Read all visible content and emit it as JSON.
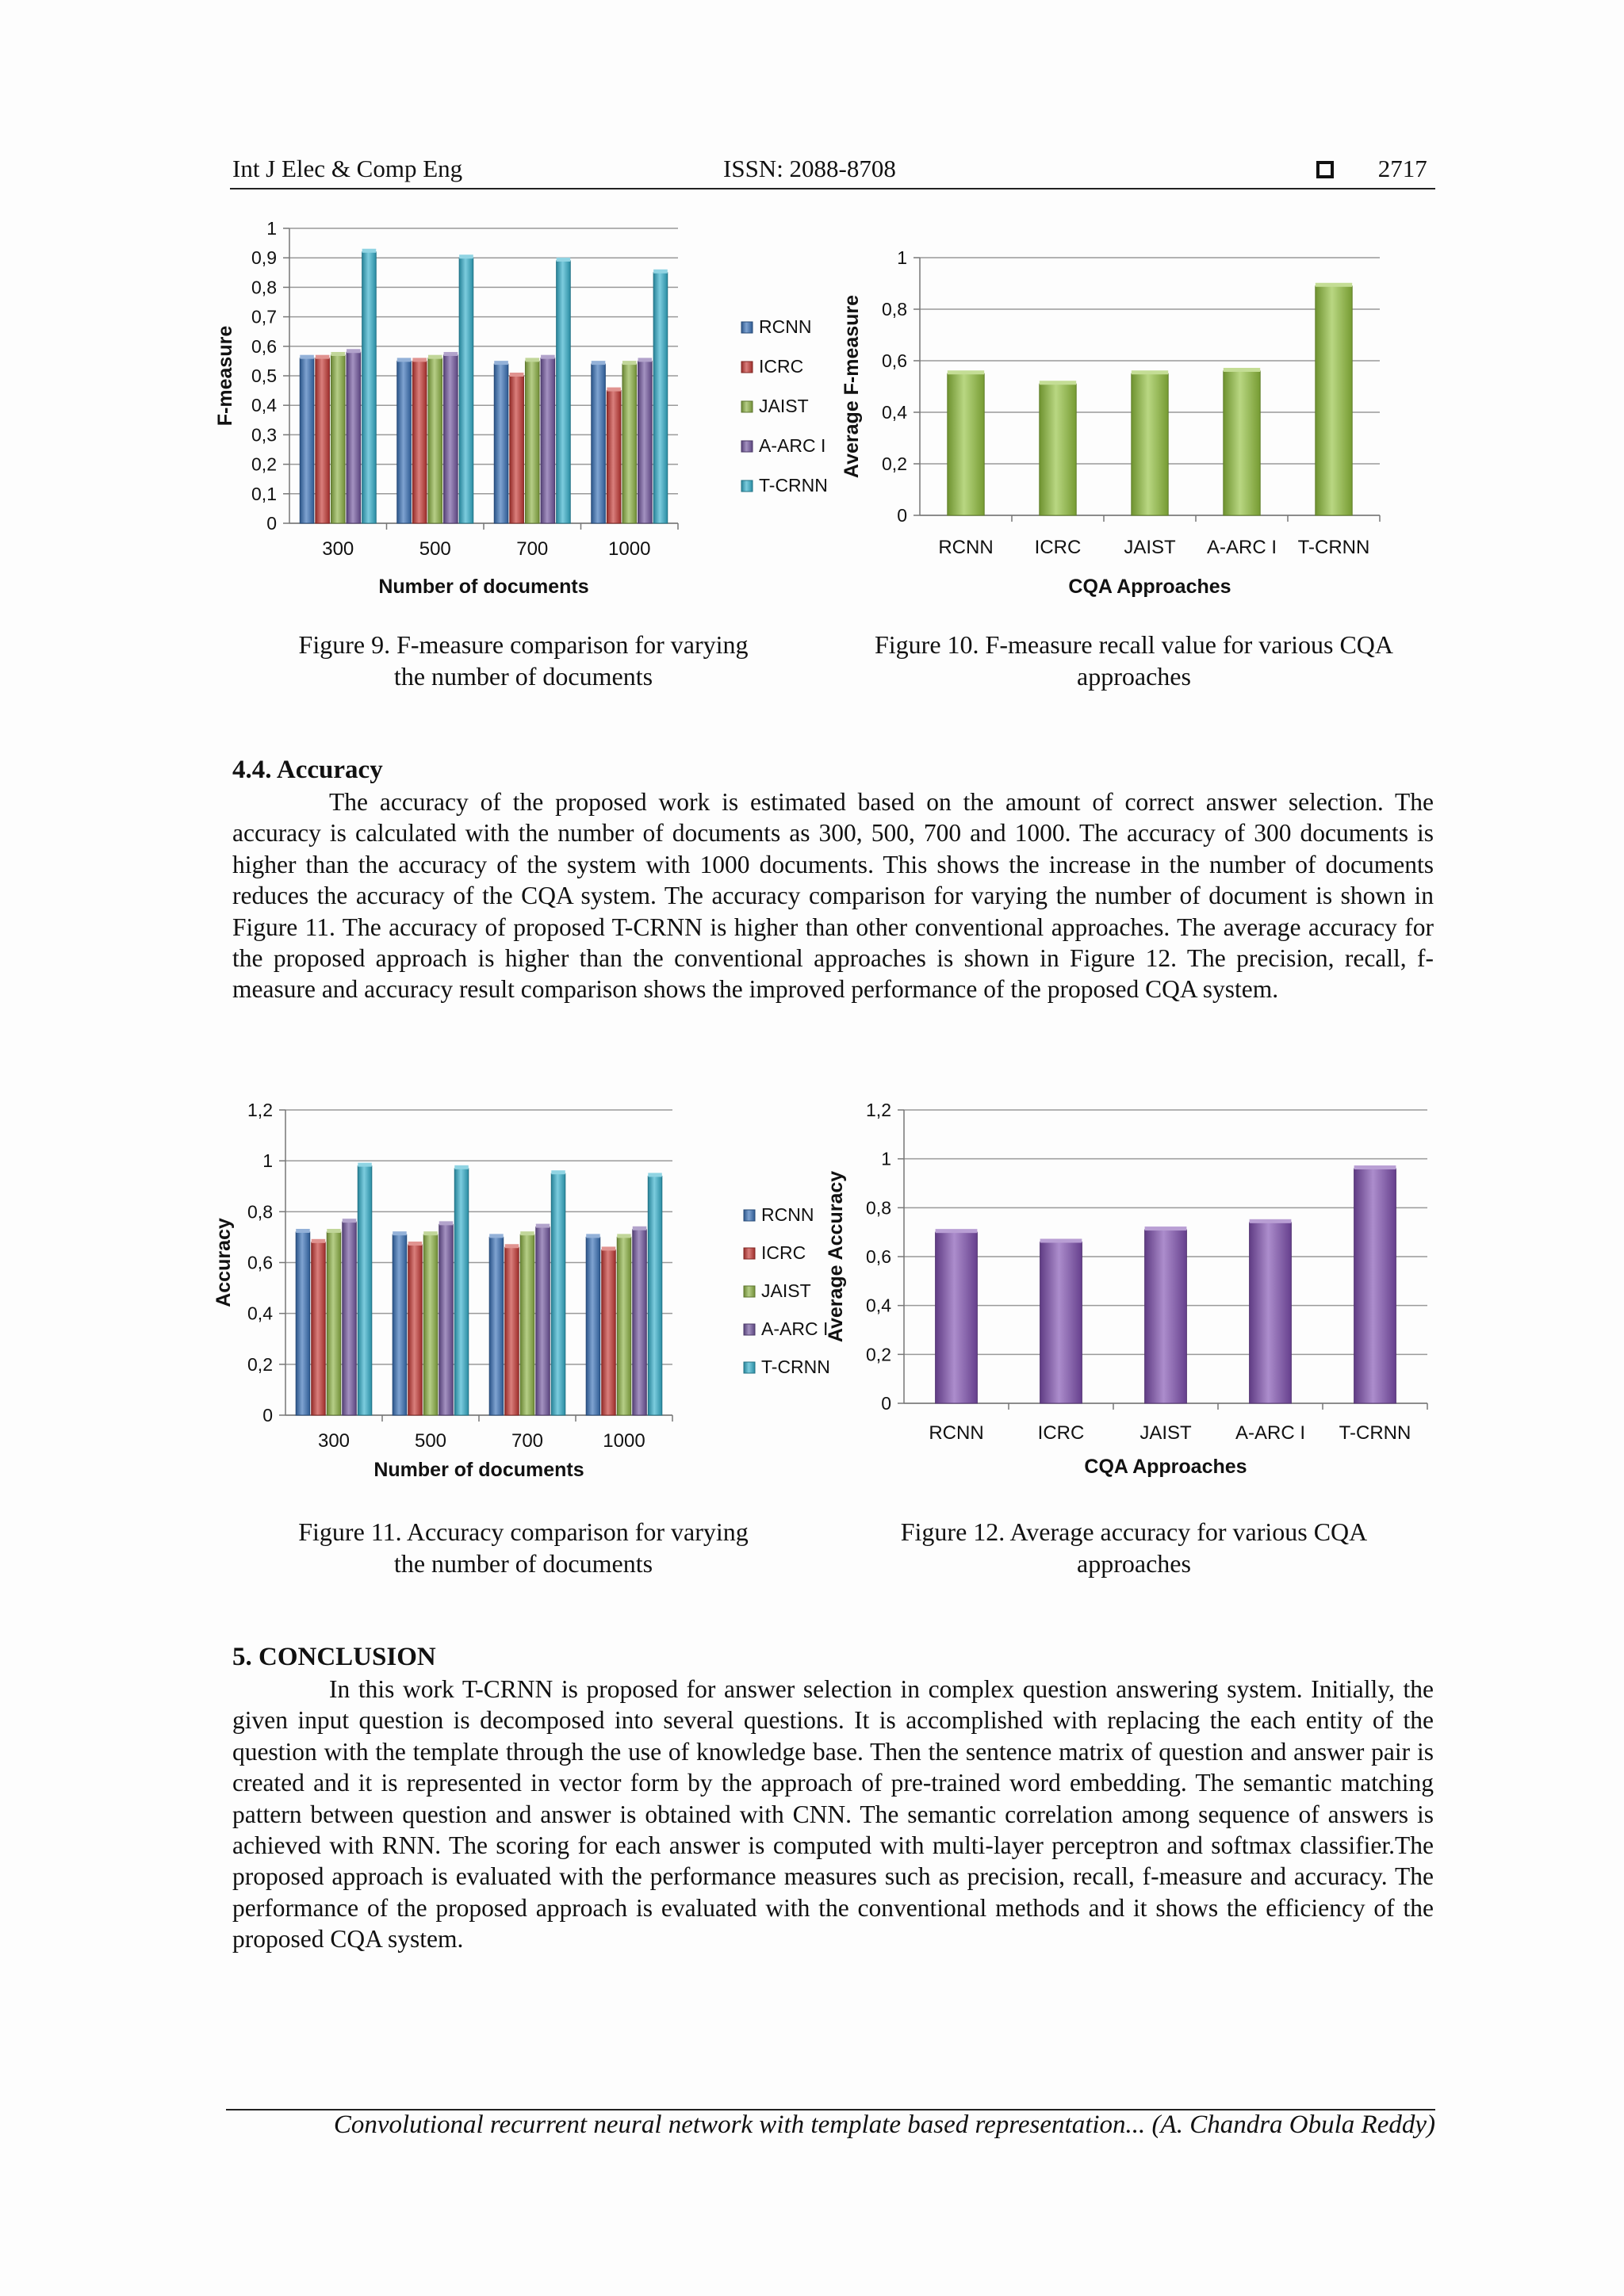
{
  "header": {
    "journal": "Int J Elec & Comp Eng",
    "issn": "ISSN: 2088-8708",
    "page_number": "2717",
    "box_icon": "square-icon"
  },
  "figures": {
    "fig9": {
      "caption": [
        "Figure 9. F-measure comparison for varying",
        "the number of documents"
      ]
    },
    "fig10": {
      "caption": [
        "Figure 10. F-measure recall value for various CQA",
        "approaches"
      ]
    },
    "fig11": {
      "caption": [
        "Figure 11. Accuracy comparison for varying",
        "the number of documents"
      ]
    },
    "fig12": {
      "caption": [
        "Figure 12. Average accuracy for various CQA",
        "approaches"
      ]
    }
  },
  "section_accuracy": {
    "heading": "4.4.   Accuracy",
    "body": "The accuracy of the proposed work is estimated based on the amount of correct answer selection. The accuracy is calculated with the number of documents as 300, 500, 700 and 1000. The accuracy of 300 documents is higher than the accuracy of the system with 1000 documents. This shows the increase in the number of documents reduces the accuracy of the CQA system. The accuracy comparison for varying the number of document is shown in Figure 11. The accuracy of proposed T-CRNN is higher than other conventional approaches. The average accuracy for the proposed approach is higher than the conventional approaches is shown in Figure 12. The precision, recall, f-measure and accuracy result comparison shows the improved performance of the proposed CQA system."
  },
  "section_conclusion": {
    "heading": "5.     CONCLUSION",
    "body": "In this work T-CRNN is proposed for answer selection in complex question answering system. Initially, the given input question is decomposed into several questions. It is accomplished with replacing the each entity of the question with the template through the use of knowledge base. Then the sentence matrix of question and answer pair is created and it is represented in vector form by the approach of pre-trained word embedding. The semantic matching pattern between question and answer is obtained with CNN. The semantic correlation among sequence of answers is achieved with RNN. The scoring for each answer is computed with multi-layer perceptron and softmax classifier.The proposed approach is evaluated with the performance measures such as precision, recall, f-measure and accuracy. The performance of the proposed approach is evaluated with the conventional methods and it shows the efficiency of the proposed CQA system."
  },
  "footer": {
    "text": "Convolutional recurrent neural network with template based representation... (A. Chandra Obula Reddy)"
  },
  "colors": {
    "RCNN": "#3a72b8",
    "ICRC": "#c63a36",
    "JAIST": "#8fb446",
    "A-ARC I": "#7358a0",
    "T-CRNN": "#35b0cc",
    "fig10_bar": "#93c23f",
    "fig12_bar": "#8050b0"
  },
  "chart_data": [
    {
      "id": "fig9",
      "type": "bar",
      "categories": [
        "300",
        "500",
        "700",
        "1000"
      ],
      "series": [
        {
          "name": "RCNN",
          "values": [
            0.56,
            0.55,
            0.54,
            0.54
          ]
        },
        {
          "name": "ICRC",
          "values": [
            0.56,
            0.55,
            0.5,
            0.45
          ]
        },
        {
          "name": "JAIST",
          "values": [
            0.57,
            0.56,
            0.55,
            0.54
          ]
        },
        {
          "name": "A-ARC I",
          "values": [
            0.58,
            0.57,
            0.56,
            0.55
          ]
        },
        {
          "name": "T-CRNN",
          "values": [
            0.92,
            0.9,
            0.89,
            0.85
          ]
        }
      ],
      "title": "",
      "xlabel": "Number of documents",
      "ylabel": "F-measure",
      "ylim": [
        0,
        1
      ],
      "yticks": [
        "0",
        "0,1",
        "0,2",
        "0,3",
        "0,4",
        "0,5",
        "0,6",
        "0,7",
        "0,8",
        "0,9",
        "1"
      ],
      "legend": "right",
      "grid": true
    },
    {
      "id": "fig10",
      "type": "bar",
      "categories": [
        "RCNN",
        "ICRC",
        "JAIST",
        "A-ARC I",
        "T-CRNN"
      ],
      "values": [
        0.55,
        0.51,
        0.55,
        0.56,
        0.89
      ],
      "title": "",
      "xlabel": "CQA Approaches",
      "ylabel": "Average F-measure",
      "ylim": [
        0,
        1
      ],
      "yticks": [
        "0",
        "0,2",
        "0,4",
        "0,6",
        "0,8",
        "1"
      ],
      "grid": true
    },
    {
      "id": "fig11",
      "type": "bar",
      "categories": [
        "300",
        "500",
        "700",
        "1000"
      ],
      "series": [
        {
          "name": "RCNN",
          "values": [
            0.72,
            0.71,
            0.7,
            0.7
          ]
        },
        {
          "name": "ICRC",
          "values": [
            0.68,
            0.67,
            0.66,
            0.65
          ]
        },
        {
          "name": "JAIST",
          "values": [
            0.72,
            0.71,
            0.71,
            0.7
          ]
        },
        {
          "name": "A-ARC I",
          "values": [
            0.76,
            0.75,
            0.74,
            0.73
          ]
        },
        {
          "name": "T-CRNN",
          "values": [
            0.98,
            0.97,
            0.95,
            0.94
          ]
        }
      ],
      "title": "",
      "xlabel": "Number of documents",
      "ylabel": "Accuracy",
      "ylim": [
        0,
        1.2
      ],
      "yticks": [
        "0",
        "0,2",
        "0,4",
        "0,6",
        "0,8",
        "1",
        "1,2"
      ],
      "legend": "right",
      "grid": true
    },
    {
      "id": "fig12",
      "type": "bar",
      "categories": [
        "RCNN",
        "ICRC",
        "JAIST",
        "A-ARC I",
        "T-CRNN"
      ],
      "values": [
        0.7,
        0.66,
        0.71,
        0.74,
        0.96
      ],
      "title": "",
      "xlabel": "CQA Approaches",
      "ylabel": "Average Accuracy",
      "ylim": [
        0,
        1.2
      ],
      "yticks": [
        "0",
        "0,2",
        "0,4",
        "0,6",
        "0,8",
        "1",
        "1,2"
      ],
      "grid": true
    }
  ]
}
